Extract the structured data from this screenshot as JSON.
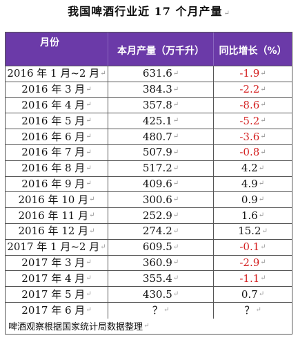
{
  "title": "我国啤酒行业近 17 个月产量",
  "headers": [
    "月份",
    "本月产量（万千升）",
    "同比增长（%）"
  ],
  "rows": [
    {
      "month": "2016 年 1 月~2 月",
      "output": "631.6",
      "growth": "-1.9"
    },
    {
      "month": "2016 年 3 月",
      "output": "384.3",
      "growth": "-2.2"
    },
    {
      "month": "2016 年 4 月",
      "output": "357.8",
      "growth": "-8.6"
    },
    {
      "month": "2016 年 5 月",
      "output": "425.1",
      "growth": "-5.2"
    },
    {
      "month": "2016 年 6 月",
      "output": "480.7",
      "growth": "-3.6"
    },
    {
      "month": "2016 年 7 月",
      "output": "507.9",
      "growth": "-0.8"
    },
    {
      "month": "2016 年 8 月",
      "output": "517.2",
      "growth": "4.2"
    },
    {
      "month": "2016 年 9 月",
      "output": "409.6",
      "growth": "4.9"
    },
    {
      "month": "2016 年 10 月",
      "output": "300.6",
      "growth": "0.9"
    },
    {
      "month": "2016 年 11 月",
      "output": "252.9",
      "growth": "1.6"
    },
    {
      "month": "2016 年 12 月",
      "output": "274.2",
      "growth": "15.2"
    },
    {
      "month": "2017 年 1 月~2 月",
      "output": "609.5",
      "growth": "-0.1"
    },
    {
      "month": "2017 年 3 月",
      "output": "360.9",
      "growth": "-2.9"
    },
    {
      "month": "2017 年 4 月",
      "output": "355.4",
      "growth": "-1.1"
    },
    {
      "month": "2017 年 5 月",
      "output": "430.5",
      "growth": "0.7"
    },
    {
      "month": "2017 年 6 月",
      "output": "？",
      "growth": "？"
    }
  ],
  "footer": "啤酒观察根据国家统计局数据整理",
  "colors": {
    "header_bg": "#6b3aa8",
    "negative": "#d42020"
  }
}
